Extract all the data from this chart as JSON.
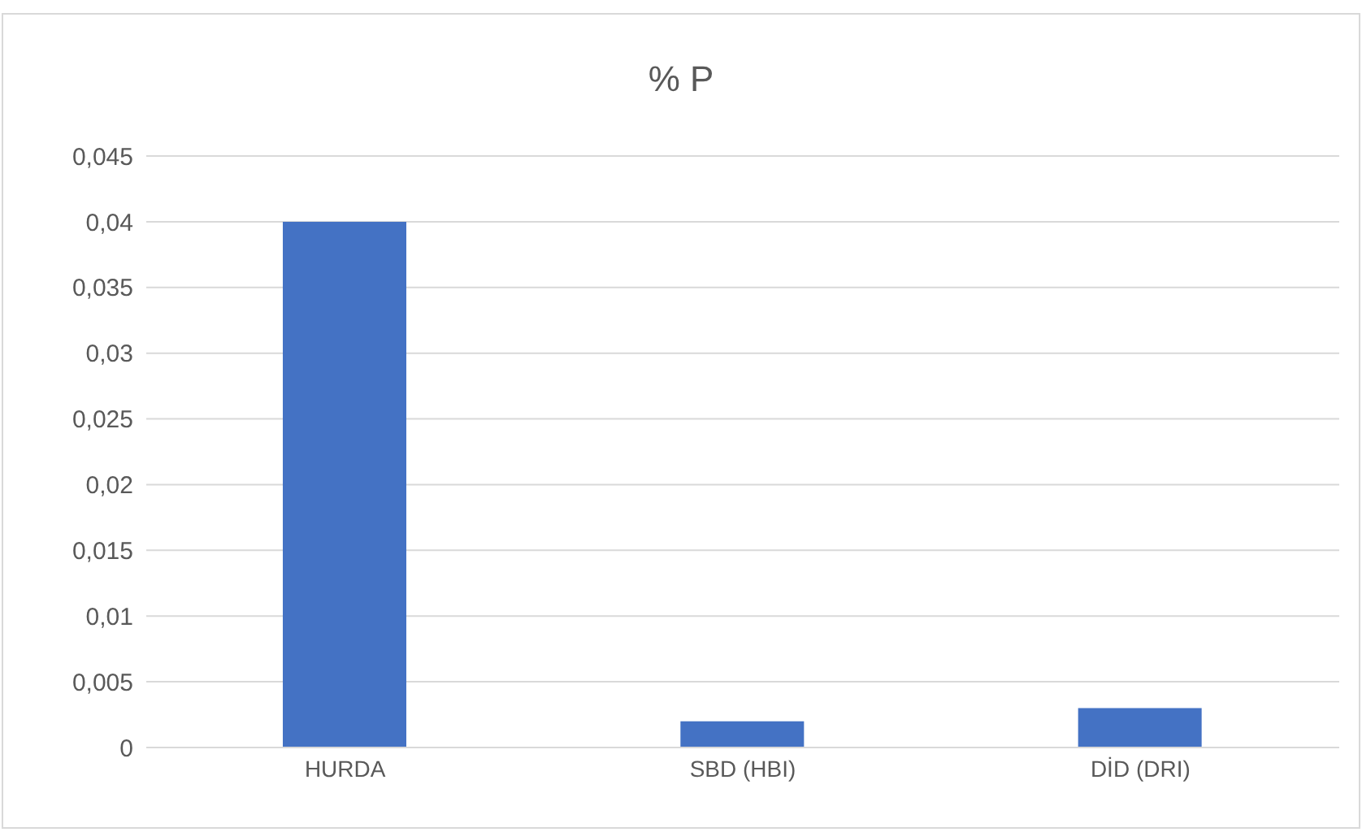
{
  "chart_data": {
    "type": "bar",
    "title": "% P",
    "categories": [
      "HURDA",
      "SBD (HBI)",
      "DİD (DRI)"
    ],
    "values": [
      0.04,
      0.002,
      0.003
    ],
    "color": "#4472c4",
    "ylim": [
      0,
      0.045
    ],
    "yticks": [
      {
        "value": 0,
        "label": "0"
      },
      {
        "value": 0.005,
        "label": "0,005"
      },
      {
        "value": 0.01,
        "label": "0,01"
      },
      {
        "value": 0.015,
        "label": "0,015"
      },
      {
        "value": 0.02,
        "label": "0,02"
      },
      {
        "value": 0.025,
        "label": "0,025"
      },
      {
        "value": 0.03,
        "label": "0,03"
      },
      {
        "value": 0.035,
        "label": "0,035"
      },
      {
        "value": 0.04,
        "label": "0,04"
      },
      {
        "value": 0.045,
        "label": "0,045"
      }
    ],
    "grid": "y",
    "legend": false
  }
}
